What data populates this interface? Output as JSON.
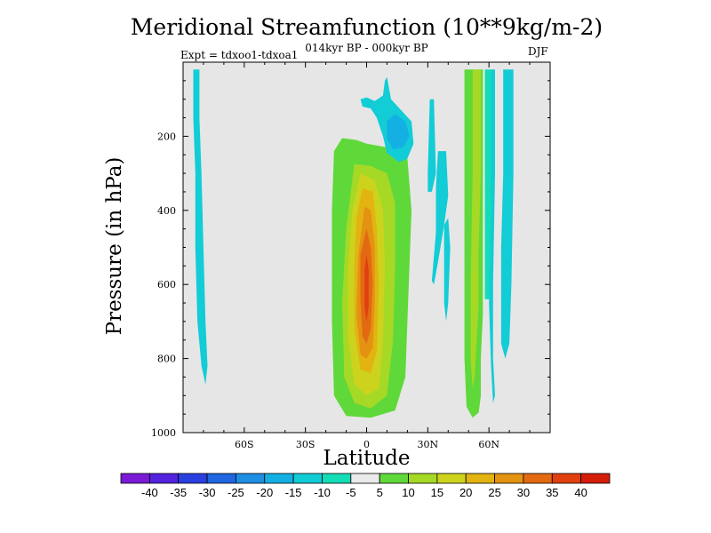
{
  "chart_data": {
    "type": "heatmap",
    "title": "Meridional Streamfunction (10**9kg/m-2)",
    "subtitle": "014kyr BP - 000kyr BP",
    "left_note": "Expt = tdxoo1-tdxoa1",
    "right_note": "DJF",
    "xlabel": "Latitude",
    "ylabel": "Pressure (in hPa)",
    "xlim": [
      -90,
      90
    ],
    "ylim": [
      1000,
      0
    ],
    "x_ticks": [
      {
        "value": -60,
        "label": "60S"
      },
      {
        "value": -30,
        "label": "30S"
      },
      {
        "value": 0,
        "label": "0"
      },
      {
        "value": 30,
        "label": "30N"
      },
      {
        "value": 60,
        "label": "60N"
      }
    ],
    "y_ticks": [
      {
        "value": 200,
        "label": "200"
      },
      {
        "value": 400,
        "label": "400"
      },
      {
        "value": 600,
        "label": "600"
      },
      {
        "value": 800,
        "label": "800"
      },
      {
        "value": 1000,
        "label": "1000"
      }
    ],
    "background_color": "#e6e6e6",
    "colorbar": {
      "levels": [
        "-40",
        "-35",
        "-30",
        "-25",
        "-20",
        "-15",
        "-10",
        "-5",
        "5",
        "10",
        "15",
        "20",
        "25",
        "30",
        "35",
        "40"
      ],
      "colors": [
        "#7a1ad6",
        "#5222dd",
        "#2a3fe0",
        "#1f66e0",
        "#1e8fe2",
        "#14b0e3",
        "#12ccd6",
        "#14dcb6",
        "#eaeaea",
        "#5fd83a",
        "#a5d925",
        "#cdd31d",
        "#e3b312",
        "#e39212",
        "#e36912",
        "#e0400f",
        "#d41e0a"
      ]
    },
    "regions": [
      {
        "name": "sh-polar-negative",
        "level": -10,
        "points": [
          [
            -85,
            20
          ],
          [
            -82,
            20
          ],
          [
            -82,
            150
          ],
          [
            -81,
            300
          ],
          [
            -80,
            500
          ],
          [
            -79,
            700
          ],
          [
            -78,
            820
          ],
          [
            -79,
            870
          ],
          [
            -81,
            820
          ],
          [
            -83,
            700
          ],
          [
            -84,
            500
          ],
          [
            -84,
            300
          ],
          [
            -85,
            150
          ]
        ]
      },
      {
        "name": "tropical-positive-5",
        "level": 5,
        "points": [
          [
            -16,
            240
          ],
          [
            -12,
            205
          ],
          [
            -5,
            210
          ],
          [
            0,
            220
          ],
          [
            10,
            230
          ],
          [
            20,
            260
          ],
          [
            22,
            400
          ],
          [
            21,
            550
          ],
          [
            20,
            700
          ],
          [
            19,
            850
          ],
          [
            14,
            940
          ],
          [
            2,
            960
          ],
          [
            -10,
            955
          ],
          [
            -16,
            900
          ],
          [
            -17,
            700
          ],
          [
            -17,
            400
          ]
        ]
      },
      {
        "name": "tropical-positive-10",
        "level": 10,
        "points": [
          [
            -6,
            275
          ],
          [
            2,
            280
          ],
          [
            10,
            300
          ],
          [
            14,
            380
          ],
          [
            14,
            550
          ],
          [
            13,
            750
          ],
          [
            10,
            900
          ],
          [
            2,
            935
          ],
          [
            -6,
            920
          ],
          [
            -11,
            850
          ],
          [
            -12,
            650
          ],
          [
            -10,
            450
          ]
        ]
      },
      {
        "name": "tropical-positive-15",
        "level": 15,
        "points": [
          [
            -3,
            300
          ],
          [
            4,
            320
          ],
          [
            8,
            400
          ],
          [
            9,
            550
          ],
          [
            8,
            750
          ],
          [
            6,
            880
          ],
          [
            0,
            900
          ],
          [
            -6,
            870
          ],
          [
            -9,
            750
          ],
          [
            -9,
            550
          ],
          [
            -7,
            400
          ]
        ]
      },
      {
        "name": "tropical-positive-20",
        "level": 20,
        "points": [
          [
            -2,
            340
          ],
          [
            3,
            350
          ],
          [
            5,
            450
          ],
          [
            6,
            600
          ],
          [
            5,
            780
          ],
          [
            2,
            840
          ],
          [
            -3,
            830
          ],
          [
            -6,
            720
          ],
          [
            -6,
            550
          ],
          [
            -5,
            420
          ]
        ]
      },
      {
        "name": "tropical-positive-25",
        "level": 25,
        "points": [
          [
            -1,
            390
          ],
          [
            2,
            400
          ],
          [
            4,
            500
          ],
          [
            4,
            650
          ],
          [
            3,
            770
          ],
          [
            0,
            800
          ],
          [
            -3,
            790
          ],
          [
            -5,
            680
          ],
          [
            -4,
            520
          ]
        ]
      },
      {
        "name": "tropical-positive-30",
        "level": 30,
        "points": [
          [
            0,
            450
          ],
          [
            2,
            500
          ],
          [
            3,
            600
          ],
          [
            2,
            720
          ],
          [
            0,
            760
          ],
          [
            -2,
            740
          ],
          [
            -3,
            640
          ],
          [
            -3,
            520
          ]
        ]
      },
      {
        "name": "tropical-positive-35",
        "level": 35,
        "points": [
          [
            0,
            520
          ],
          [
            1,
            560
          ],
          [
            1,
            660
          ],
          [
            0,
            700
          ],
          [
            -1,
            660
          ],
          [
            -1,
            560
          ]
        ]
      },
      {
        "name": "upper-negative-10",
        "level": -10,
        "points": [
          [
            10,
            40
          ],
          [
            12,
            100
          ],
          [
            17,
            130
          ],
          [
            22,
            160
          ],
          [
            23,
            220
          ],
          [
            20,
            260
          ],
          [
            16,
            270
          ],
          [
            10,
            245
          ],
          [
            8,
            200
          ],
          [
            5,
            150
          ],
          [
            2,
            125
          ],
          [
            -2,
            120
          ],
          [
            -3,
            100
          ],
          [
            0,
            95
          ],
          [
            4,
            105
          ],
          [
            8,
            90
          ],
          [
            9,
            50
          ]
        ]
      },
      {
        "name": "upper-negative-15",
        "level": -15,
        "points": [
          [
            10,
            160
          ],
          [
            14,
            140
          ],
          [
            19,
            160
          ],
          [
            21,
            200
          ],
          [
            18,
            230
          ],
          [
            13,
            235
          ],
          [
            10,
            205
          ]
        ]
      },
      {
        "name": "mid-lat-negative-a",
        "level": -10,
        "points": [
          [
            31,
            100
          ],
          [
            33,
            100
          ],
          [
            34,
            300
          ],
          [
            32,
            350
          ],
          [
            30,
            350
          ],
          [
            30,
            300
          ]
        ]
      },
      {
        "name": "mid-lat-negative-b",
        "level": -10,
        "points": [
          [
            35,
            240
          ],
          [
            39,
            240
          ],
          [
            40,
            360
          ],
          [
            38,
            440
          ],
          [
            35,
            540
          ],
          [
            33,
            600
          ],
          [
            32,
            590
          ],
          [
            34,
            460
          ],
          [
            34,
            340
          ]
        ]
      },
      {
        "name": "nh-band-c",
        "level": -10,
        "points": [
          [
            38,
            440
          ],
          [
            40,
            420
          ],
          [
            41,
            500
          ],
          [
            40,
            650
          ],
          [
            39,
            700
          ],
          [
            38,
            650
          ]
        ]
      },
      {
        "name": "nh-positive-5",
        "level": 5,
        "points": [
          [
            48,
            20
          ],
          [
            57,
            20
          ],
          [
            57,
            200
          ],
          [
            57,
            500
          ],
          [
            57,
            680
          ],
          [
            56,
            800
          ],
          [
            56,
            900
          ],
          [
            55,
            945
          ],
          [
            52,
            960
          ],
          [
            49,
            930
          ],
          [
            48,
            800
          ],
          [
            48,
            500
          ],
          [
            48,
            200
          ]
        ]
      },
      {
        "name": "nh-positive-10",
        "level": 10,
        "points": [
          [
            52,
            20
          ],
          [
            56,
            20
          ],
          [
            56,
            300
          ],
          [
            55,
            500
          ],
          [
            55,
            650
          ],
          [
            54,
            750
          ],
          [
            53,
            850
          ],
          [
            52,
            880
          ],
          [
            51,
            800
          ],
          [
            51,
            600
          ],
          [
            52,
            300
          ]
        ]
      },
      {
        "name": "nh-gap-minus-5",
        "level": -5,
        "points": [
          [
            58,
            20
          ],
          [
            61,
            20
          ],
          [
            61,
            600
          ],
          [
            60,
            640
          ],
          [
            58,
            640
          ],
          [
            58,
            600
          ]
        ]
      },
      {
        "name": "nh-band-d",
        "level": -10,
        "points": [
          [
            61,
            20
          ],
          [
            63,
            20
          ],
          [
            63,
            300
          ],
          [
            62,
            600
          ],
          [
            62,
            800
          ],
          [
            63,
            900
          ],
          [
            62,
            920
          ],
          [
            61,
            820
          ],
          [
            60,
            650
          ],
          [
            61,
            400
          ]
        ]
      },
      {
        "name": "nh-band-e",
        "level": -10,
        "points": [
          [
            67,
            20
          ],
          [
            72,
            20
          ],
          [
            72,
            300
          ],
          [
            71,
            600
          ],
          [
            70,
            760
          ],
          [
            68,
            800
          ],
          [
            66,
            760
          ],
          [
            66,
            500
          ],
          [
            67,
            300
          ]
        ]
      }
    ]
  }
}
